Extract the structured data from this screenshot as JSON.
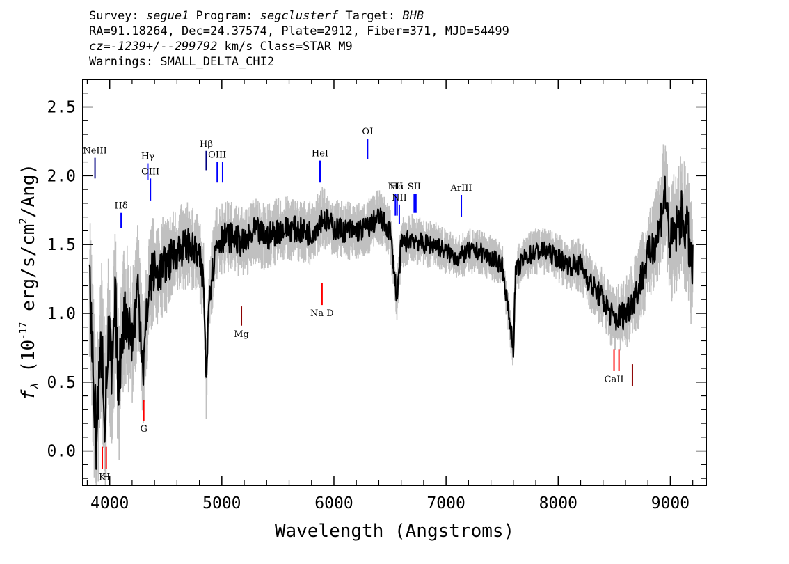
{
  "header": {
    "l1_a": "Survey: ",
    "l1_b": "segue1",
    "l1_c": " Program: ",
    "l1_d": "segclusterf",
    "l1_e": " Target: ",
    "l1_f": "BHB",
    "l2": "RA=91.18264, Dec=24.37574, Plate=2912, Fiber=371, MJD=54499",
    "l3_a": "cz=-1239+/--299792",
    "l3_b": " km/s Class=STAR M9",
    "l4": "Warnings: SMALL_DELTA_CHI2"
  },
  "chart_data": {
    "type": "line",
    "xlabel": "Wavelength (Angstroms)",
    "ylabel": "fλ (10^-17 erg/s/cm^2/Ang)",
    "xlim": [
      3760,
      9320
    ],
    "ylim": [
      -0.25,
      2.7
    ],
    "xticks": [
      4000,
      5000,
      6000,
      7000,
      8000,
      9000
    ],
    "yticks": [
      0.0,
      0.5,
      1.0,
      1.5,
      2.0,
      2.5
    ],
    "ytick_labels": [
      "0.0",
      "0.5",
      "1.0",
      "1.5",
      "2.0",
      "2.5"
    ],
    "series": [
      {
        "role": "flux",
        "color": "#000000",
        "x": [
          3820,
          3850,
          3880,
          3900,
          3930,
          3960,
          3990,
          4020,
          4050,
          4080,
          4110,
          4150,
          4200,
          4250,
          4300,
          4340,
          4380,
          4450,
          4500,
          4600,
          4700,
          4800,
          4840,
          4861,
          4880,
          4950,
          5000,
          5100,
          5200,
          5300,
          5400,
          5500,
          5600,
          5700,
          5800,
          5900,
          6000,
          6100,
          6200,
          6300,
          6400,
          6500,
          6563,
          6600,
          6700,
          6800,
          6900,
          7000,
          7100,
          7200,
          7300,
          7400,
          7500,
          7600,
          7620,
          7700,
          7800,
          7900,
          8000,
          8100,
          8200,
          8300,
          8400,
          8500,
          8600,
          8700,
          8800,
          8900,
          8950,
          9000,
          9050,
          9100,
          9150,
          9200
        ],
        "y": [
          1.3,
          0.6,
          0.1,
          0.4,
          0.8,
          0.2,
          0.9,
          0.5,
          1.1,
          0.4,
          0.9,
          1.0,
          0.8,
          1.2,
          0.6,
          1.1,
          1.3,
          1.3,
          1.35,
          1.45,
          1.5,
          1.4,
          1.2,
          0.45,
          1.1,
          1.5,
          1.55,
          1.55,
          1.5,
          1.6,
          1.55,
          1.6,
          1.62,
          1.6,
          1.58,
          1.7,
          1.62,
          1.6,
          1.6,
          1.62,
          1.7,
          1.6,
          1.1,
          1.5,
          1.55,
          1.5,
          1.5,
          1.45,
          1.4,
          1.45,
          1.45,
          1.4,
          1.35,
          0.75,
          1.3,
          1.4,
          1.45,
          1.45,
          1.4,
          1.35,
          1.35,
          1.2,
          1.1,
          0.95,
          1.0,
          1.15,
          1.4,
          1.6,
          1.9,
          1.5,
          1.6,
          1.7,
          1.6,
          1.3
        ]
      },
      {
        "role": "error",
        "color": "#c0c0c0",
        "x": [
          3820,
          4000,
          4300,
          4600,
          5000,
          5500,
          6000,
          6500,
          7000,
          7500,
          8000,
          8500,
          8800,
          9000,
          9200
        ],
        "y": [
          0.6,
          0.55,
          0.4,
          0.3,
          0.25,
          0.22,
          0.2,
          0.18,
          0.15,
          0.15,
          0.16,
          0.22,
          0.3,
          0.4,
          0.45
        ]
      }
    ],
    "emission_lines": [
      {
        "label": "NeIII",
        "x": 3869,
        "top": 2.13,
        "bottom": 1.98,
        "color": "#000080"
      },
      {
        "label": "Hδ",
        "x": 4102,
        "top": 1.73,
        "bottom": 1.62,
        "color": "#0000ff"
      },
      {
        "label": "Hγ",
        "x": 4340,
        "top": 2.09,
        "bottom": 1.97,
        "color": "#0000ff"
      },
      {
        "label": "OIII",
        "x": 4363,
        "top": 1.98,
        "bottom": 1.82,
        "color": "#0000ff"
      },
      {
        "label": "Hβ",
        "x": 4861,
        "top": 2.18,
        "bottom": 2.04,
        "color": "#000080"
      },
      {
        "label": "OIII",
        "x": 4959,
        "top": 2.1,
        "bottom": 1.95,
        "color": "#0000ff"
      },
      {
        "label": "",
        "x": 5007,
        "top": 2.1,
        "bottom": 1.95,
        "color": "#0000ff"
      },
      {
        "label": "HeI",
        "x": 5876,
        "top": 2.11,
        "bottom": 1.95,
        "color": "#0000ff"
      },
      {
        "label": "OI",
        "x": 6300,
        "top": 2.27,
        "bottom": 2.12,
        "color": "#0000ff"
      },
      {
        "label": "NII",
        "x": 6548,
        "top": 1.87,
        "bottom": 1.71,
        "color": "#0000ff"
      },
      {
        "label": "Hα",
        "x": 6563,
        "top": 1.87,
        "bottom": 1.71,
        "color": "#0000ff"
      },
      {
        "label": "NII",
        "x": 6583,
        "top": 1.79,
        "bottom": 1.65,
        "color": "#0000ff"
      },
      {
        "label": "SII",
        "x": 6716,
        "top": 1.87,
        "bottom": 1.73,
        "color": "#0000ff"
      },
      {
        "label": "",
        "x": 6731,
        "top": 1.87,
        "bottom": 1.73,
        "color": "#0000ff"
      },
      {
        "label": "ArIII",
        "x": 7136,
        "top": 1.86,
        "bottom": 1.7,
        "color": "#0000ff"
      }
    ],
    "absorption_lines": [
      {
        "label": "K",
        "x": 3934,
        "top": 0.03,
        "bottom": -0.13,
        "color": "#ff0000"
      },
      {
        "label": "H",
        "x": 3969,
        "top": 0.03,
        "bottom": -0.13,
        "color": "#ff0000"
      },
      {
        "label": "G",
        "x": 4304,
        "top": 0.37,
        "bottom": 0.22,
        "color": "#ff0000"
      },
      {
        "label": "Mg",
        "x": 5175,
        "top": 1.05,
        "bottom": 0.91,
        "color": "#8b0000"
      },
      {
        "label": "Na D",
        "x": 5894,
        "top": 1.22,
        "bottom": 1.06,
        "color": "#ff0000"
      },
      {
        "label": "CaII",
        "x": 8498,
        "top": 0.74,
        "bottom": 0.58,
        "color": "#ff0000"
      },
      {
        "label": "",
        "x": 8542,
        "top": 0.74,
        "bottom": 0.58,
        "color": "#ff0000"
      },
      {
        "label": "",
        "x": 8662,
        "top": 0.63,
        "bottom": 0.47,
        "color": "#8b0000"
      }
    ]
  }
}
